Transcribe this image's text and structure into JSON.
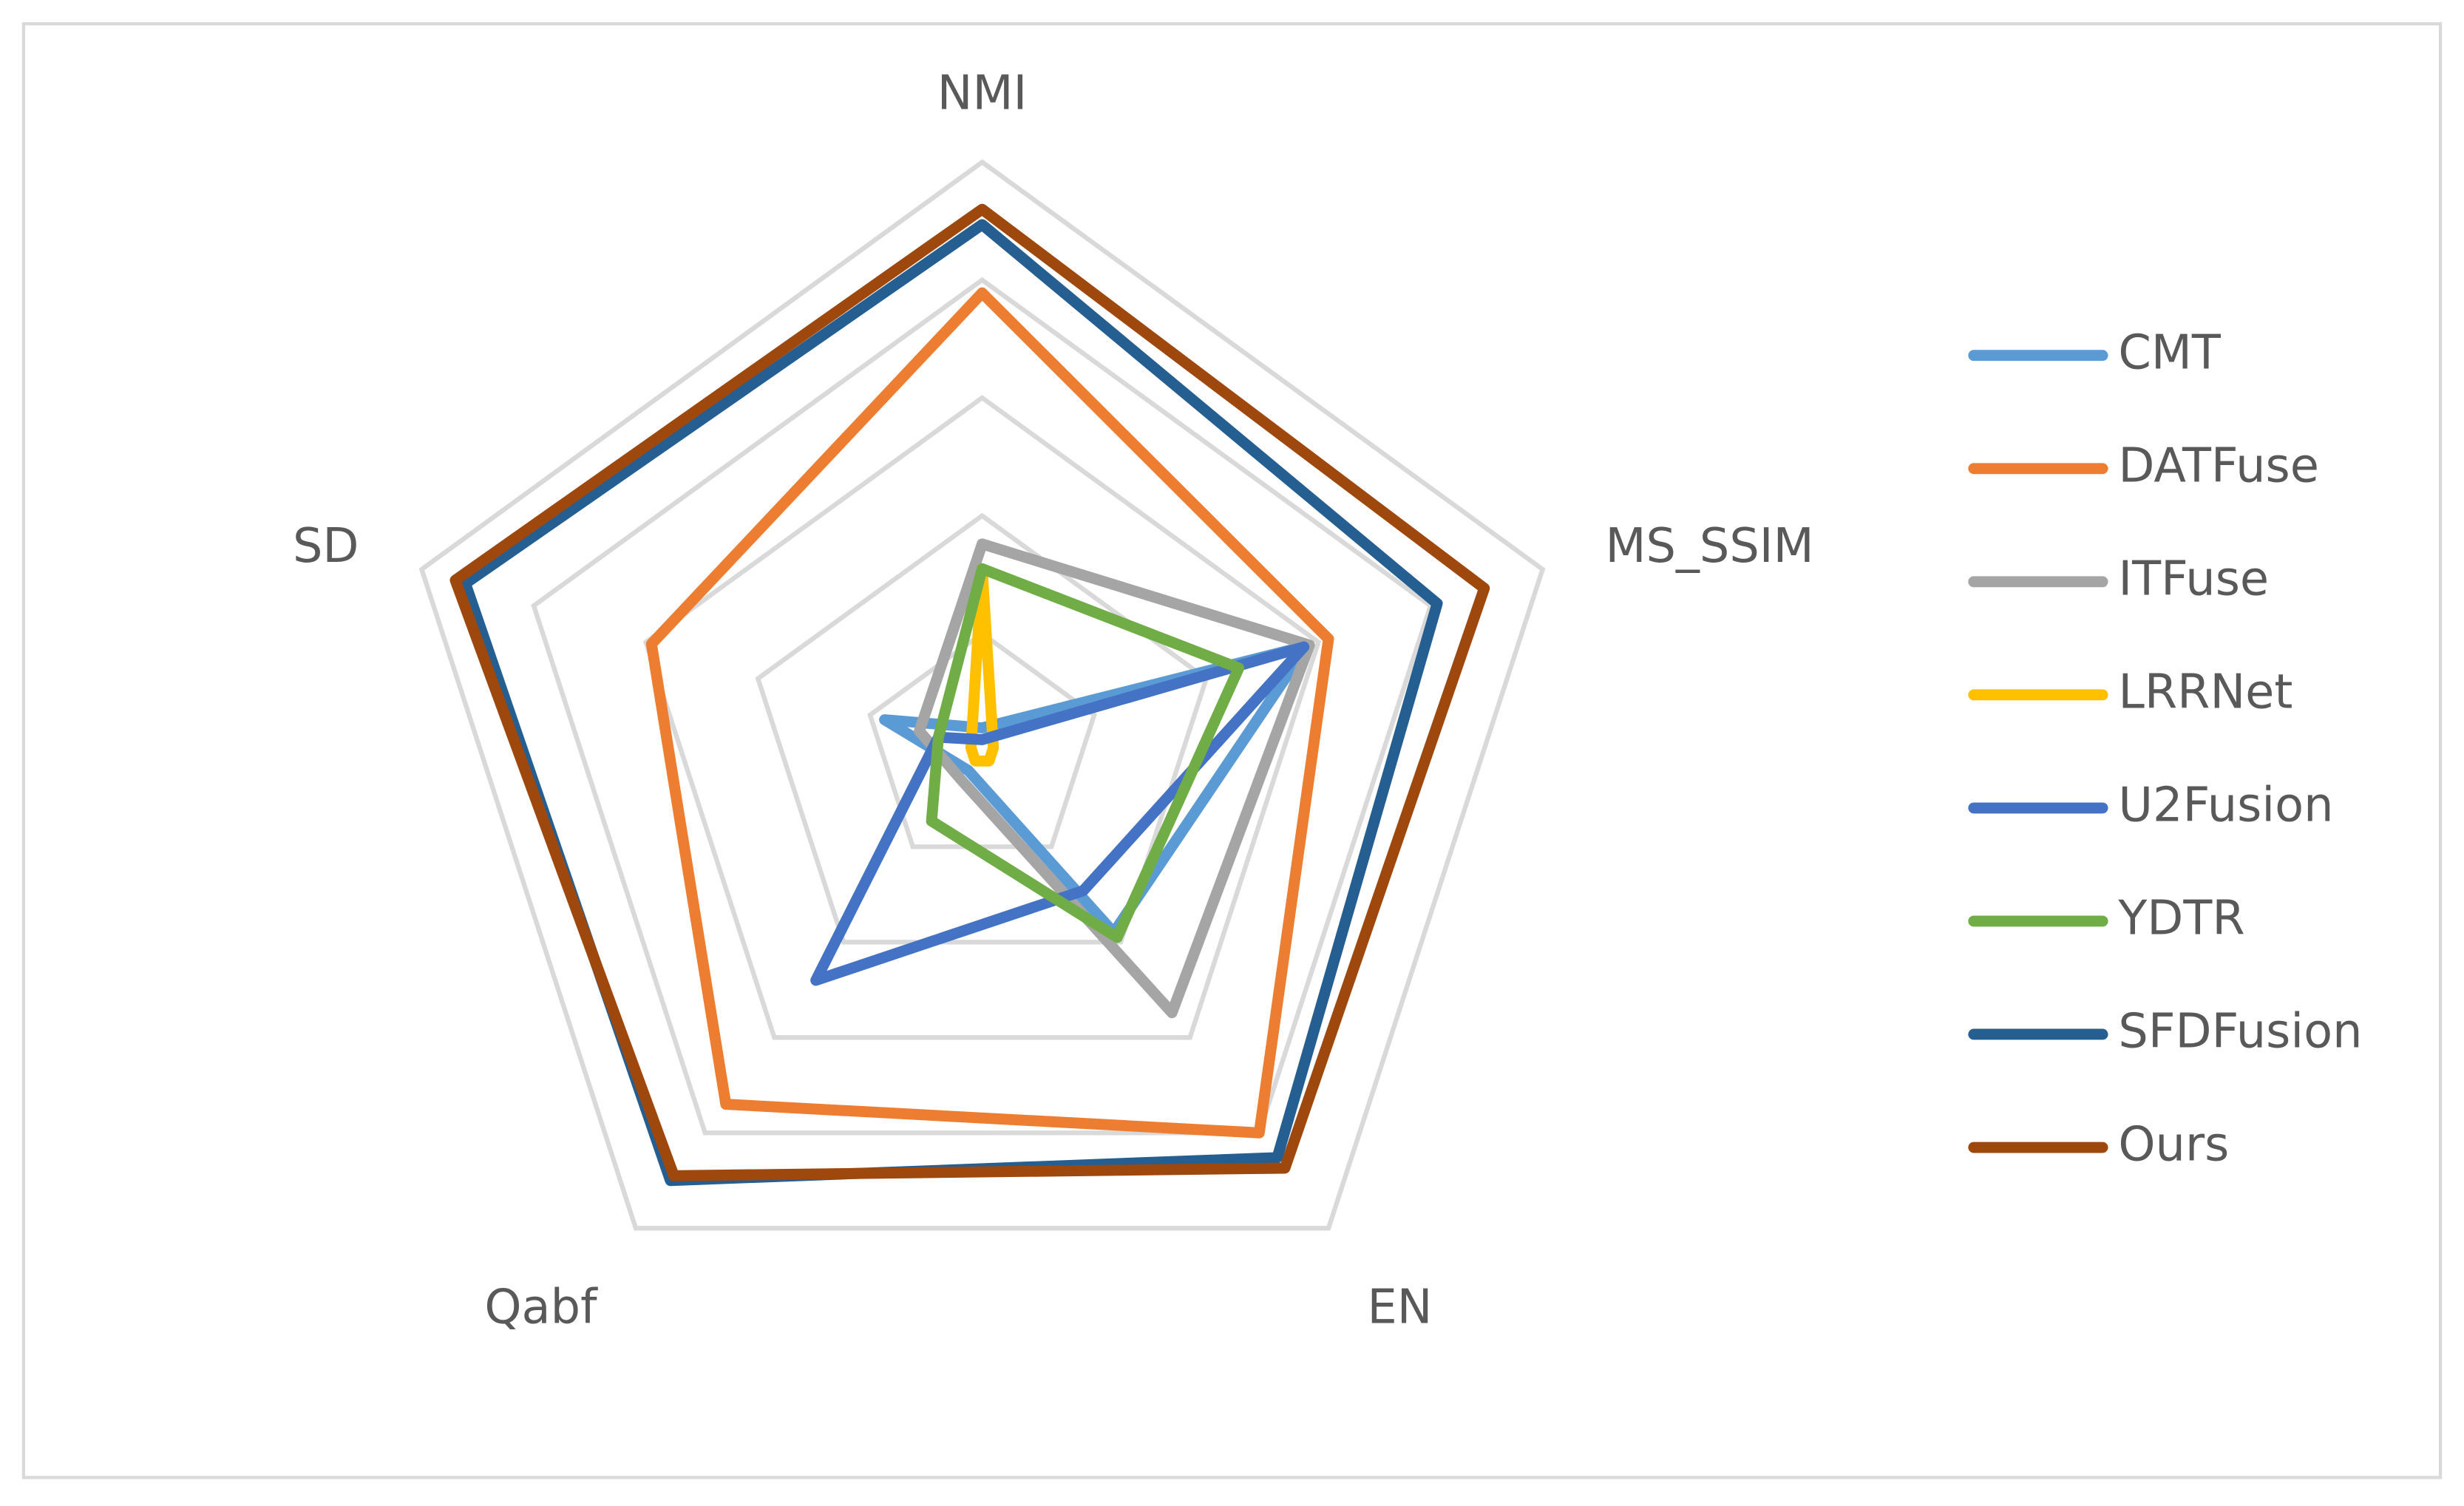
{
  "chart_data": {
    "type": "radar",
    "categories": [
      "NMI",
      "MS_SSIM",
      "EN",
      "Qabf",
      "SD"
    ],
    "ylim": [
      0,
      5
    ],
    "yticks": [
      1,
      2,
      3,
      4,
      5
    ],
    "grid": true,
    "legend": "right",
    "series": [
      {
        "name": "CMT",
        "color": "#5b9bd5",
        "values": [
          0.2,
          2.9,
          1.9,
          0.2,
          0.87
        ]
      },
      {
        "name": "DATFuse",
        "color": "#ed7d31",
        "values": [
          3.89,
          3.09,
          4.0,
          3.7,
          2.95
        ]
      },
      {
        "name": "ITFuse",
        "color": "#a5a5a5",
        "values": [
          1.76,
          2.92,
          2.74,
          0.3,
          0.56
        ]
      },
      {
        "name": "LRRNet",
        "color": "#ffc000",
        "values": [
          1.55,
          0.1,
          0.1,
          0.1,
          0.1
        ]
      },
      {
        "name": "U2Fusion",
        "color": "#4472c4",
        "values": [
          0.1,
          2.87,
          1.46,
          2.4,
          0.39
        ]
      },
      {
        "name": "YDTR",
        "color": "#70ad47",
        "values": [
          1.55,
          2.29,
          1.95,
          0.73,
          0.39
        ]
      },
      {
        "name": "SFDFusion",
        "color": "#255e91",
        "values": [
          4.47,
          4.06,
          4.26,
          4.5,
          4.61
        ]
      },
      {
        "name": "Ours",
        "color": "#9e480e",
        "values": [
          4.6,
          4.48,
          4.37,
          4.45,
          4.7
        ]
      }
    ]
  }
}
